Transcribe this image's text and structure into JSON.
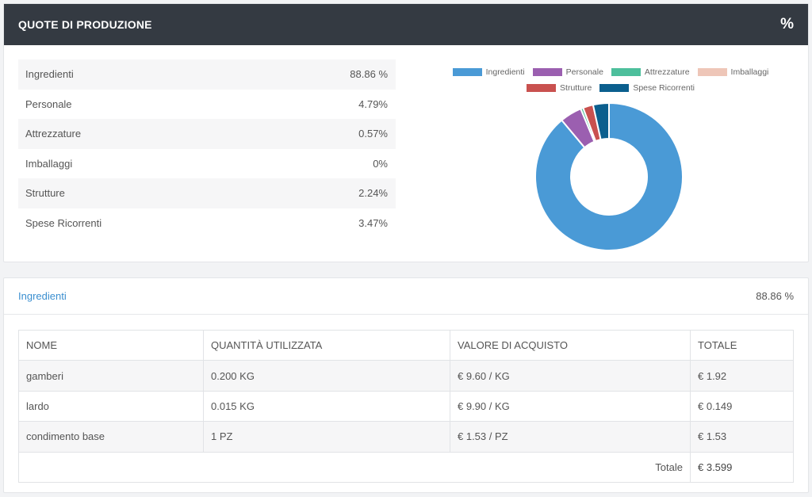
{
  "header": {
    "title": "QUOTE DI PRODUZIONE",
    "icon": "percent-icon",
    "icon_text": "%"
  },
  "quotes": [
    {
      "label": "Ingredienti",
      "value": "88.86 %"
    },
    {
      "label": "Personale",
      "value": "4.79%"
    },
    {
      "label": "Attrezzature",
      "value": "0.57%"
    },
    {
      "label": "Imballaggi",
      "value": "0%"
    },
    {
      "label": "Strutture",
      "value": "2.24%"
    },
    {
      "label": "Spese Ricorrenti",
      "value": "3.47%"
    }
  ],
  "chart_data": {
    "type": "pie",
    "categories": [
      "Ingredienti",
      "Personale",
      "Attrezzature",
      "Imballaggi",
      "Strutture",
      "Spese Ricorrenti"
    ],
    "values": [
      88.86,
      4.79,
      0.57,
      0,
      2.24,
      3.47
    ],
    "colors": [
      "#4a9ad6",
      "#9b5fb0",
      "#4dbf9c",
      "#eec6b8",
      "#c9514f",
      "#0b5f8e"
    ],
    "legend": "top"
  },
  "detail": {
    "title": "Ingredienti",
    "value": "88.86 %",
    "columns": [
      "NOME",
      "QUANTITÀ UTILIZZATA",
      "VALORE DI ACQUISTO",
      "TOTALE"
    ],
    "rows": [
      [
        "gamberi",
        "0.200 KG",
        "€ 9.60 / KG",
        "€ 1.92"
      ],
      [
        "lardo",
        "0.015 KG",
        "€ 9.90 / KG",
        "€ 0.149"
      ],
      [
        "condimento base",
        "1 PZ",
        "€ 1.53 / PZ",
        "€ 1.53"
      ]
    ],
    "total_label": "Totale",
    "total_value": "€ 3.599"
  }
}
